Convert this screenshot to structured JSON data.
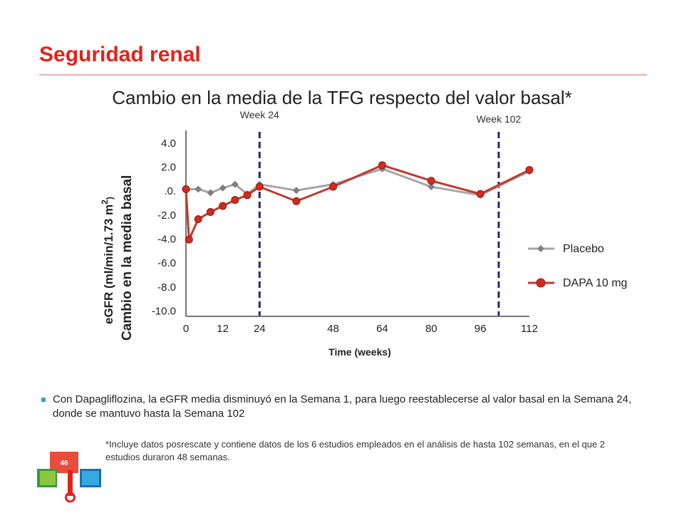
{
  "slide": {
    "title": "Seguridad renal",
    "page_number": "46",
    "bullet": "Con Dapagliflozina, la eGFR media disminuyó en la Semana 1, para luego reestablecerse al valor basal en la Semana 24, donde se mantuvo hasta la Semana 102",
    "footnote": "*Incluye datos posrescate y contiene datos de los 6 estudios empleados en el análisis de hasta 102 semanas, en el que 2 estudios duraron 48 semanas."
  },
  "colors": {
    "title_red": "#e2231a",
    "placebo_line": "#a6a6a6",
    "placebo_marker": "#7f7f7f",
    "dapa_line": "#c0392b",
    "dapa_marker": "#d42a1e",
    "reference_line": "#1f2a7a"
  },
  "chart_data": {
    "type": "line",
    "title": "Cambio en la media de la TFG respecto del valor basal*",
    "xlabel": "Time (weeks)",
    "ylabel_lines": [
      "eGFR (ml/min/1.73 m",
      "2",
      ")"
    ],
    "ylabel_line2": "Cambio en la media basal",
    "x_ticks": [
      0,
      12,
      24,
      48,
      64,
      80,
      96,
      112
    ],
    "x_tick_labels": [
      "0",
      "12",
      "24",
      "48",
      "64",
      "80",
      "96",
      "112"
    ],
    "y_ticks": [
      4,
      2,
      0,
      -2,
      -4,
      -6,
      -8,
      -10
    ],
    "y_tick_labels": [
      "4.0",
      "2.0",
      ".0.",
      "-2.0",
      "-4.0",
      "-6.0",
      "-8.0",
      "-10.0"
    ],
    "ylim": [
      -10.5,
      5
    ],
    "reference_lines": [
      {
        "x": 24,
        "label": "Week 24"
      },
      {
        "x": 102,
        "label": "Week 102"
      }
    ],
    "legend_position": "right",
    "series": [
      {
        "name": "Placebo",
        "x": [
          0,
          4,
          8,
          12,
          16,
          20,
          24,
          36,
          48,
          64,
          80,
          96,
          112
        ],
        "y": [
          0.1,
          0.1,
          -0.2,
          0.2,
          0.5,
          -0.3,
          0.5,
          0.0,
          0.5,
          1.8,
          0.3,
          -0.4,
          1.6
        ]
      },
      {
        "name": "DAPA 10 mg",
        "x": [
          0,
          1,
          4,
          8,
          12,
          16,
          20,
          24,
          36,
          48,
          64,
          80,
          96,
          112
        ],
        "y": [
          0.1,
          -4.1,
          -2.4,
          -1.8,
          -1.3,
          -0.8,
          -0.4,
          0.3,
          -0.9,
          0.3,
          2.1,
          0.8,
          -0.3,
          1.7
        ]
      }
    ]
  }
}
